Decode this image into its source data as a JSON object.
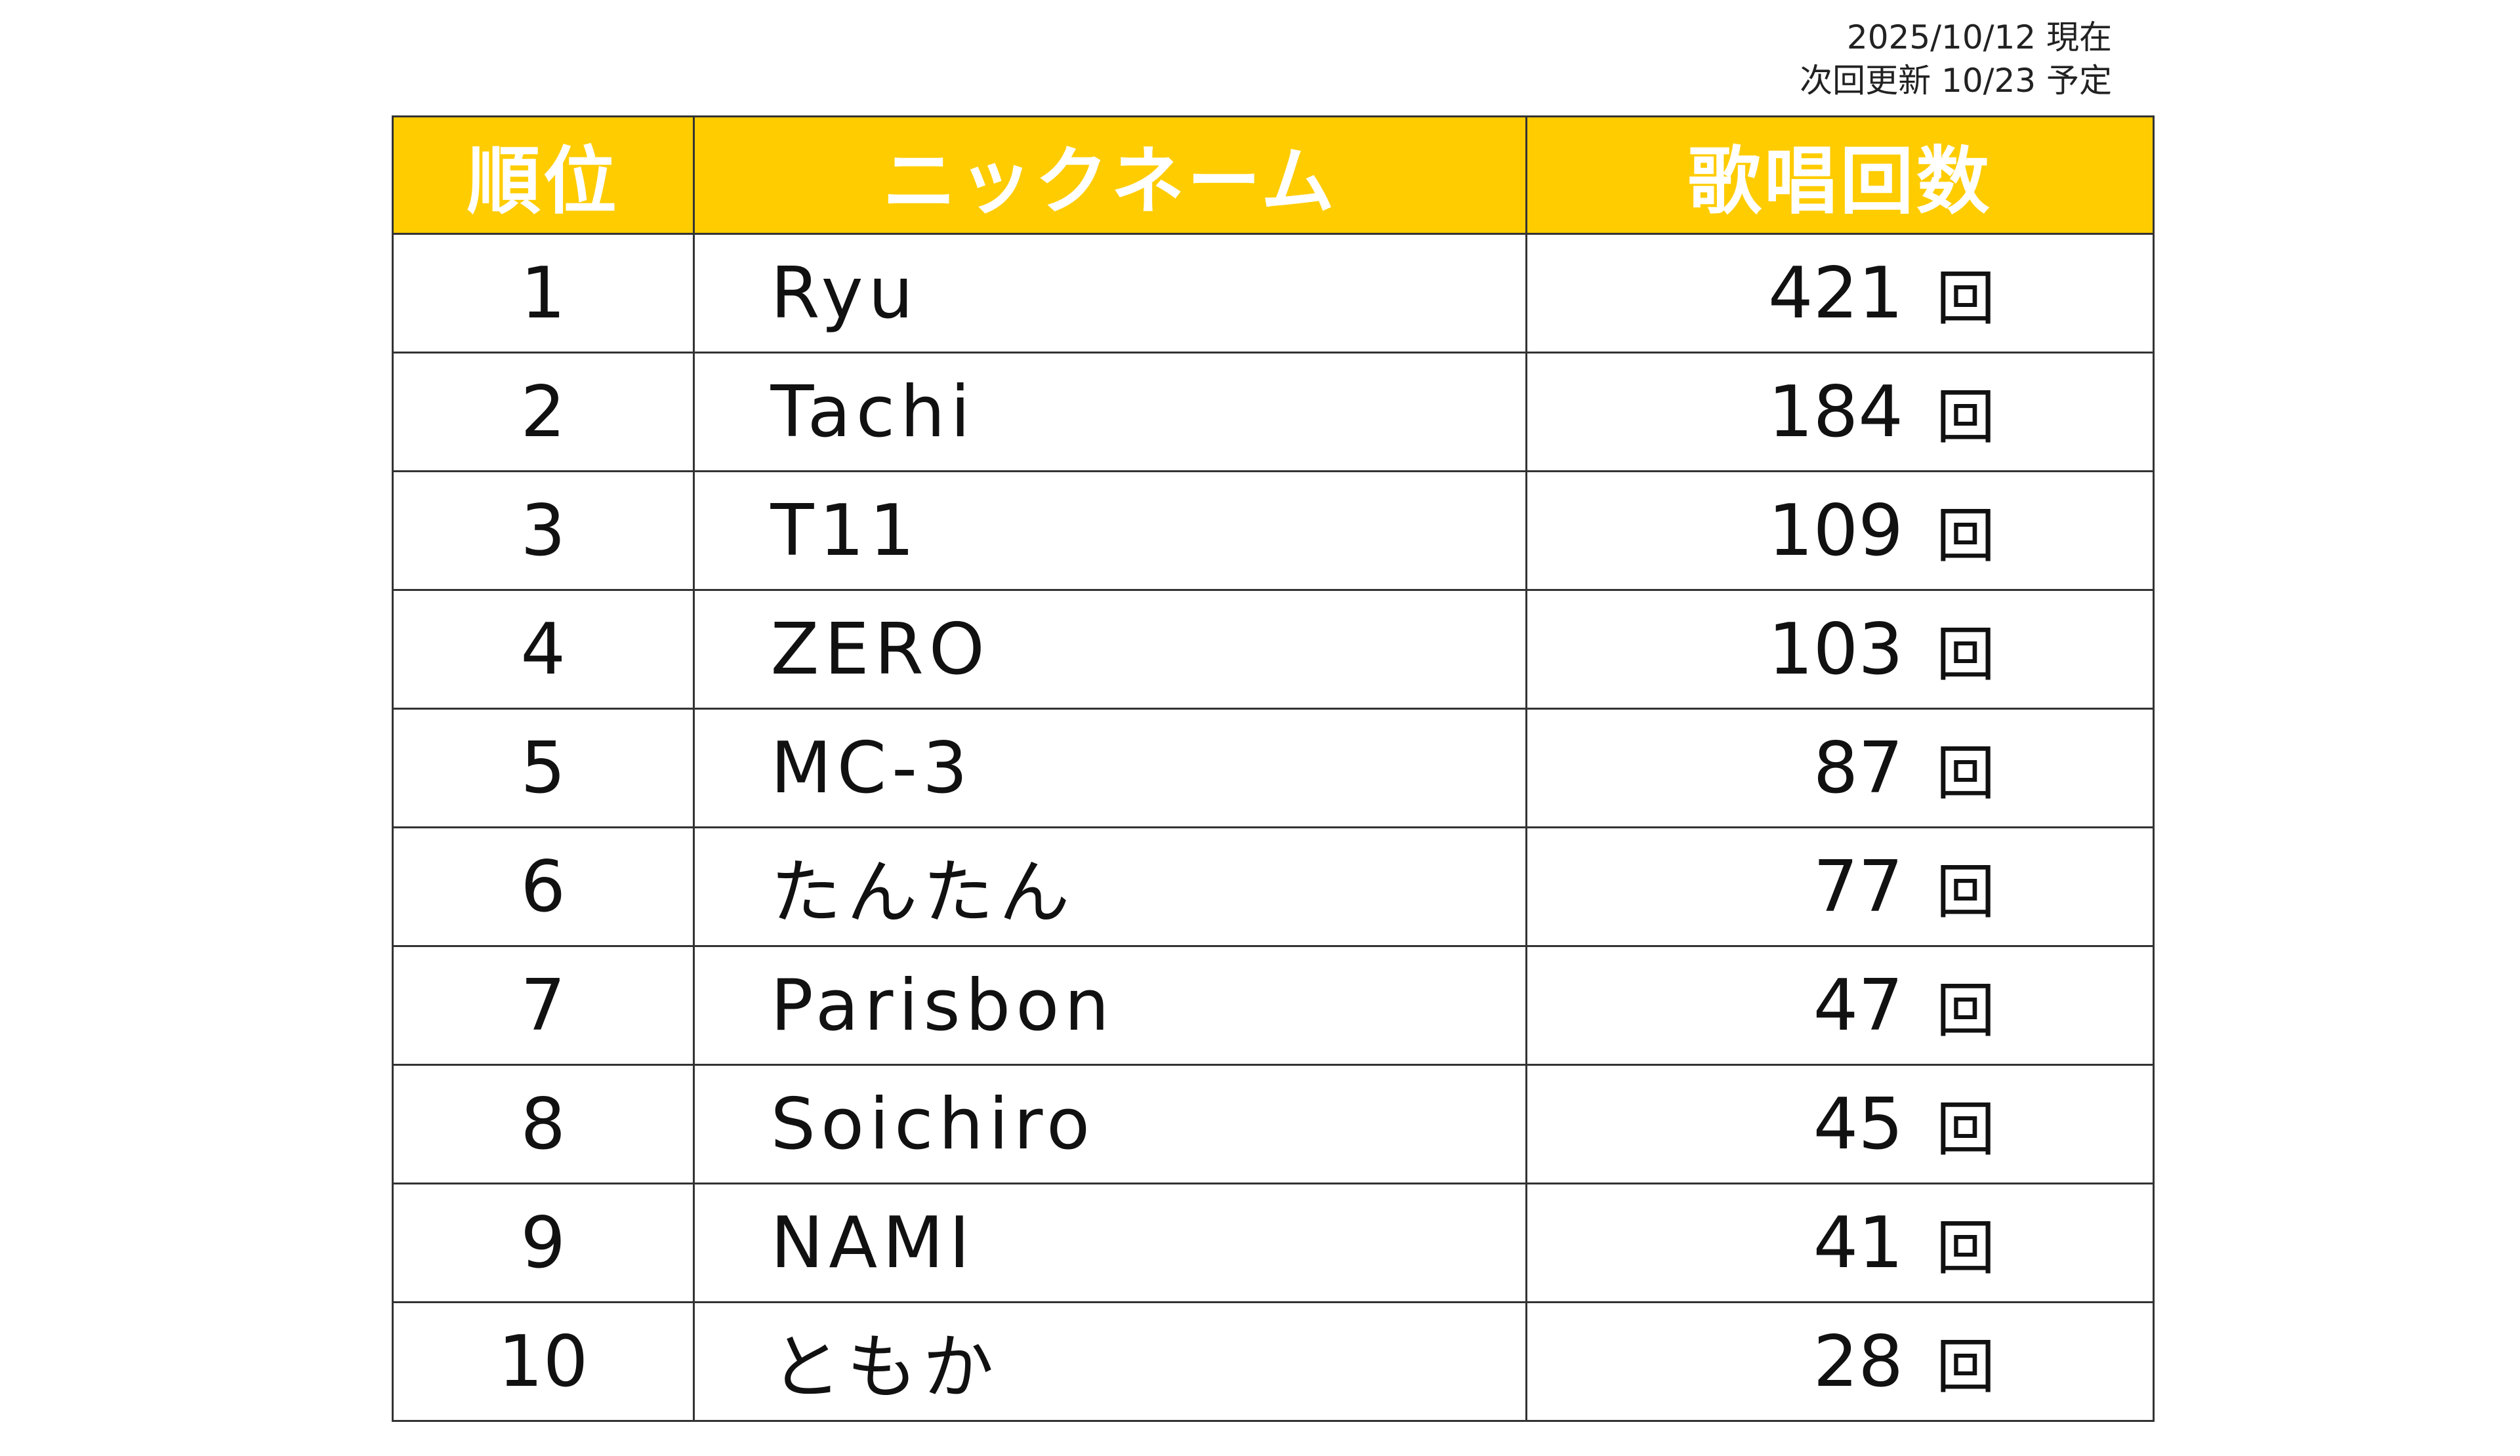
{
  "update_note": {
    "as_of": "2025/10/12 現在",
    "next_update": "次回更新 10/23 予定"
  },
  "table": {
    "headers": {
      "rank": "順位",
      "nickname": "ニックネーム",
      "count": "歌唱回数"
    },
    "unit": "回",
    "rows": [
      {
        "rank": "1",
        "name": "Ryu",
        "count": "421"
      },
      {
        "rank": "2",
        "name": "Tachi",
        "count": "184"
      },
      {
        "rank": "3",
        "name": "T11",
        "count": "109"
      },
      {
        "rank": "4",
        "name": "ZERO",
        "count": "103"
      },
      {
        "rank": "5",
        "name": "MC-3",
        "count": "87"
      },
      {
        "rank": "6",
        "name": "たんたん",
        "count": "77"
      },
      {
        "rank": "7",
        "name": "Parisbon",
        "count": "47"
      },
      {
        "rank": "8",
        "name": "Soichiro",
        "count": "45"
      },
      {
        "rank": "9",
        "name": "NAMI",
        "count": "41"
      },
      {
        "rank": "10",
        "name": "ともか",
        "count": "28"
      }
    ]
  },
  "colors": {
    "header_bg": "#ffcc00",
    "header_text": "#ffffff",
    "border": "#333333"
  }
}
